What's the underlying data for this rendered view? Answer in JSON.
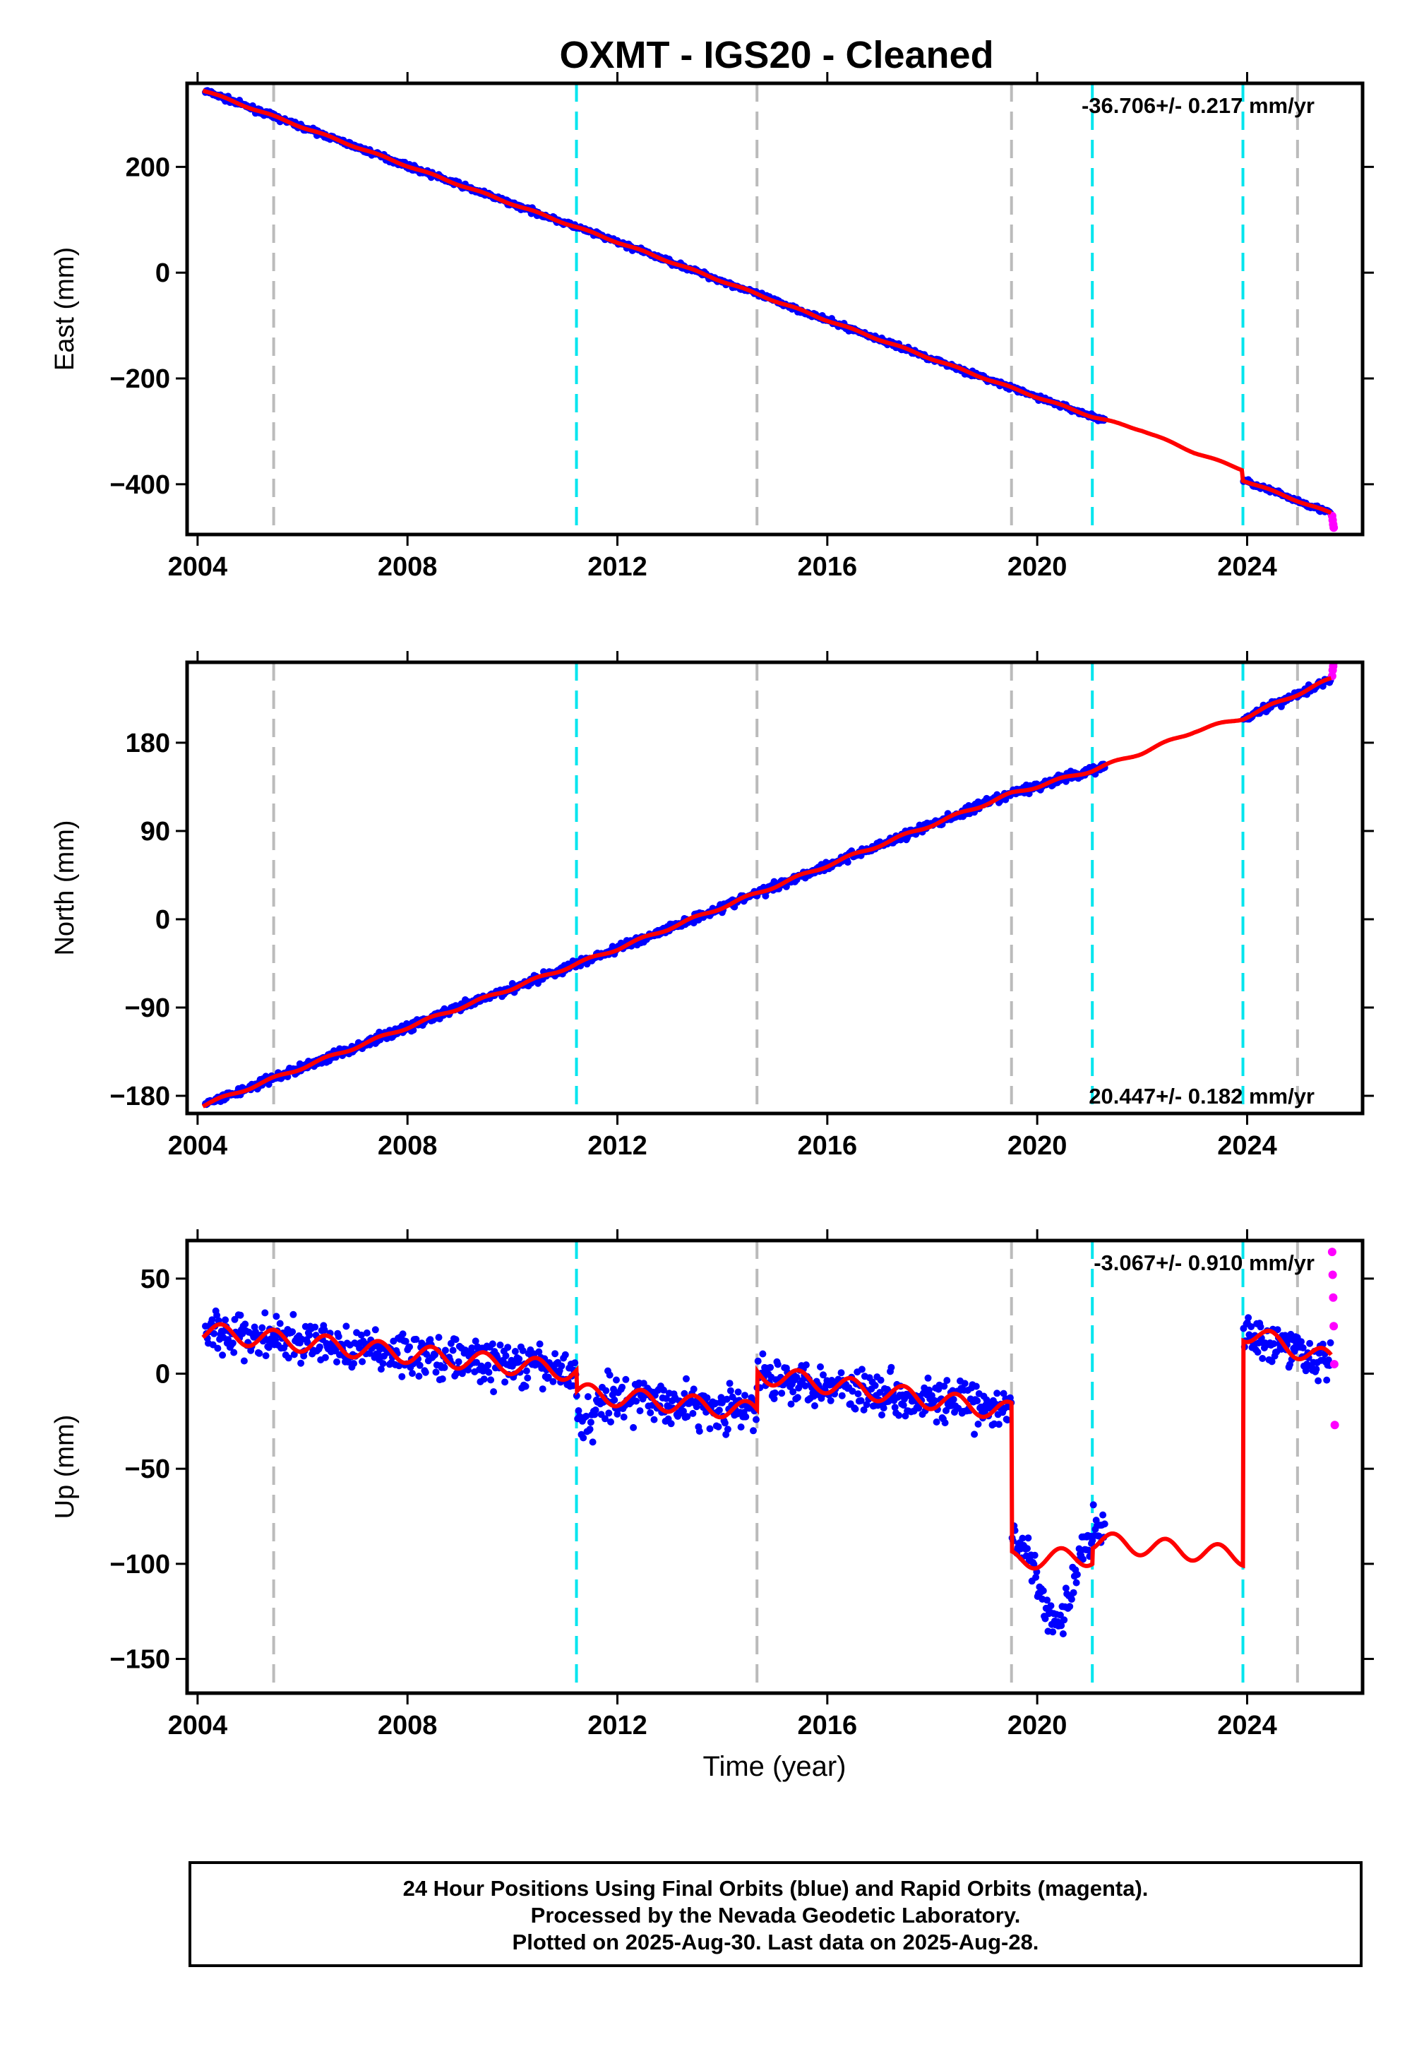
{
  "title": "OXMT  - IGS20 - Cleaned",
  "chart_data": {
    "type": "scatter",
    "x_label": "Time (year)",
    "x_range": [
      2003.8,
      2026.2
    ],
    "x_ticks": [
      "2004",
      "2008",
      "2012",
      "2016",
      "2020",
      "2024"
    ],
    "x_tick_values": [
      2004,
      2008,
      2012,
      2016,
      2020,
      2024
    ],
    "series_colors": {
      "final_orbits": "#0000ff",
      "rapid_orbits": "#ff00ff",
      "model": "#ff0000"
    },
    "event_lines": {
      "gray": {
        "color": "#bbbbbb",
        "years": [
          2005.45,
          14.66,
          2019.51,
          2024.96
        ]
      },
      "cyan": {
        "color": "#00e5ee",
        "years": [
          2011.22,
          2021.05,
          2023.92
        ]
      }
    },
    "panels": [
      {
        "id": "east",
        "ylabel": "East (mm)",
        "ylim": [
          -495,
          358
        ],
        "y_ticks": [
          "200",
          "0",
          "−200",
          "−400"
        ],
        "y_tick_values": [
          200,
          0,
          -200,
          -400
        ],
        "rate_label": "-36.706+/- 0.217 mm/yr",
        "rate_position": "top-right",
        "velocity_mm_per_yr": -36.706,
        "model": {
          "x": [
            2004.1,
            2008.0,
            2012.0,
            2016.0,
            2019.51,
            2021.05,
            2022.0,
            2023.0,
            2023.9,
            2023.92,
            2025.6
          ],
          "y": [
            345,
            202,
            58,
            -90,
            -218,
            -272,
            -298,
            -340,
            -372,
            -392,
            -455
          ]
        },
        "gaps": [
          [
            2021.3,
            2023.92
          ]
        ],
        "rapid_points": {
          "x": [
            2025.62,
            2025.63,
            2025.64,
            2025.65
          ],
          "y": [
            -460,
            -468,
            -476,
            -482
          ]
        }
      },
      {
        "id": "north",
        "ylabel": "North (mm)",
        "ylim": [
          -198,
          262
        ],
        "y_ticks": [
          "180",
          "90",
          "0",
          "−90",
          "−180"
        ],
        "y_tick_values": [
          180,
          90,
          0,
          -90,
          -180
        ],
        "rate_label": "20.447+/- 0.182 mm/yr",
        "rate_position": "bottom-right",
        "velocity_mm_per_yr": 20.447,
        "model": {
          "x": [
            2004.1,
            2008.0,
            2012.0,
            2016.0,
            2019.51,
            2021.05,
            2022.0,
            2023.0,
            2023.92,
            2025.6
          ],
          "y": [
            -190,
            -110,
            -30,
            55,
            128,
            152,
            170,
            192,
            205,
            245
          ]
        },
        "gaps": [
          [
            2021.3,
            2023.92
          ]
        ],
        "rapid_points": {
          "x": [
            2025.62,
            2025.63,
            2025.64,
            2025.65
          ],
          "y": [
            248,
            254,
            258,
            262
          ]
        }
      },
      {
        "id": "up",
        "ylabel": "Up (mm)",
        "ylim": [
          -168,
          70
        ],
        "y_ticks": [
          "50",
          "0",
          "−50",
          "−100",
          "−150"
        ],
        "y_tick_values": [
          50,
          0,
          -50,
          -100,
          -150
        ],
        "rate_label": "-3.067+/- 0.910 mm/yr",
        "rate_position": "top-right",
        "velocity_mm_per_yr": -3.067,
        "model": {
          "x": [
            2004.1,
            2011.22,
            2011.23,
            2014.66,
            2014.67,
            2019.51,
            2019.52,
            2021.05,
            2021.06,
            2023.92,
            2023.93,
            2025.6
          ],
          "y": [
            22,
            1,
            -10,
            -20,
            0,
            -20,
            -98,
            -96,
            -88,
            -96,
            22,
            7
          ]
        },
        "gaps": [
          [
            2021.3,
            2023.92
          ]
        ],
        "rapid_points": {
          "x": [
            2025.62,
            2025.63,
            2025.64,
            2025.65,
            2025.66,
            2025.67
          ],
          "y": [
            64,
            52,
            40,
            25,
            5,
            -27
          ]
        }
      }
    ]
  },
  "footer": {
    "line1": "24 Hour Positions Using Final Orbits (blue) and Rapid Orbits (magenta).",
    "line2": "Processed by the Nevada Geodetic Laboratory.",
    "line3": "Plotted on 2025-Aug-30. Last data on 2025-Aug-28."
  }
}
